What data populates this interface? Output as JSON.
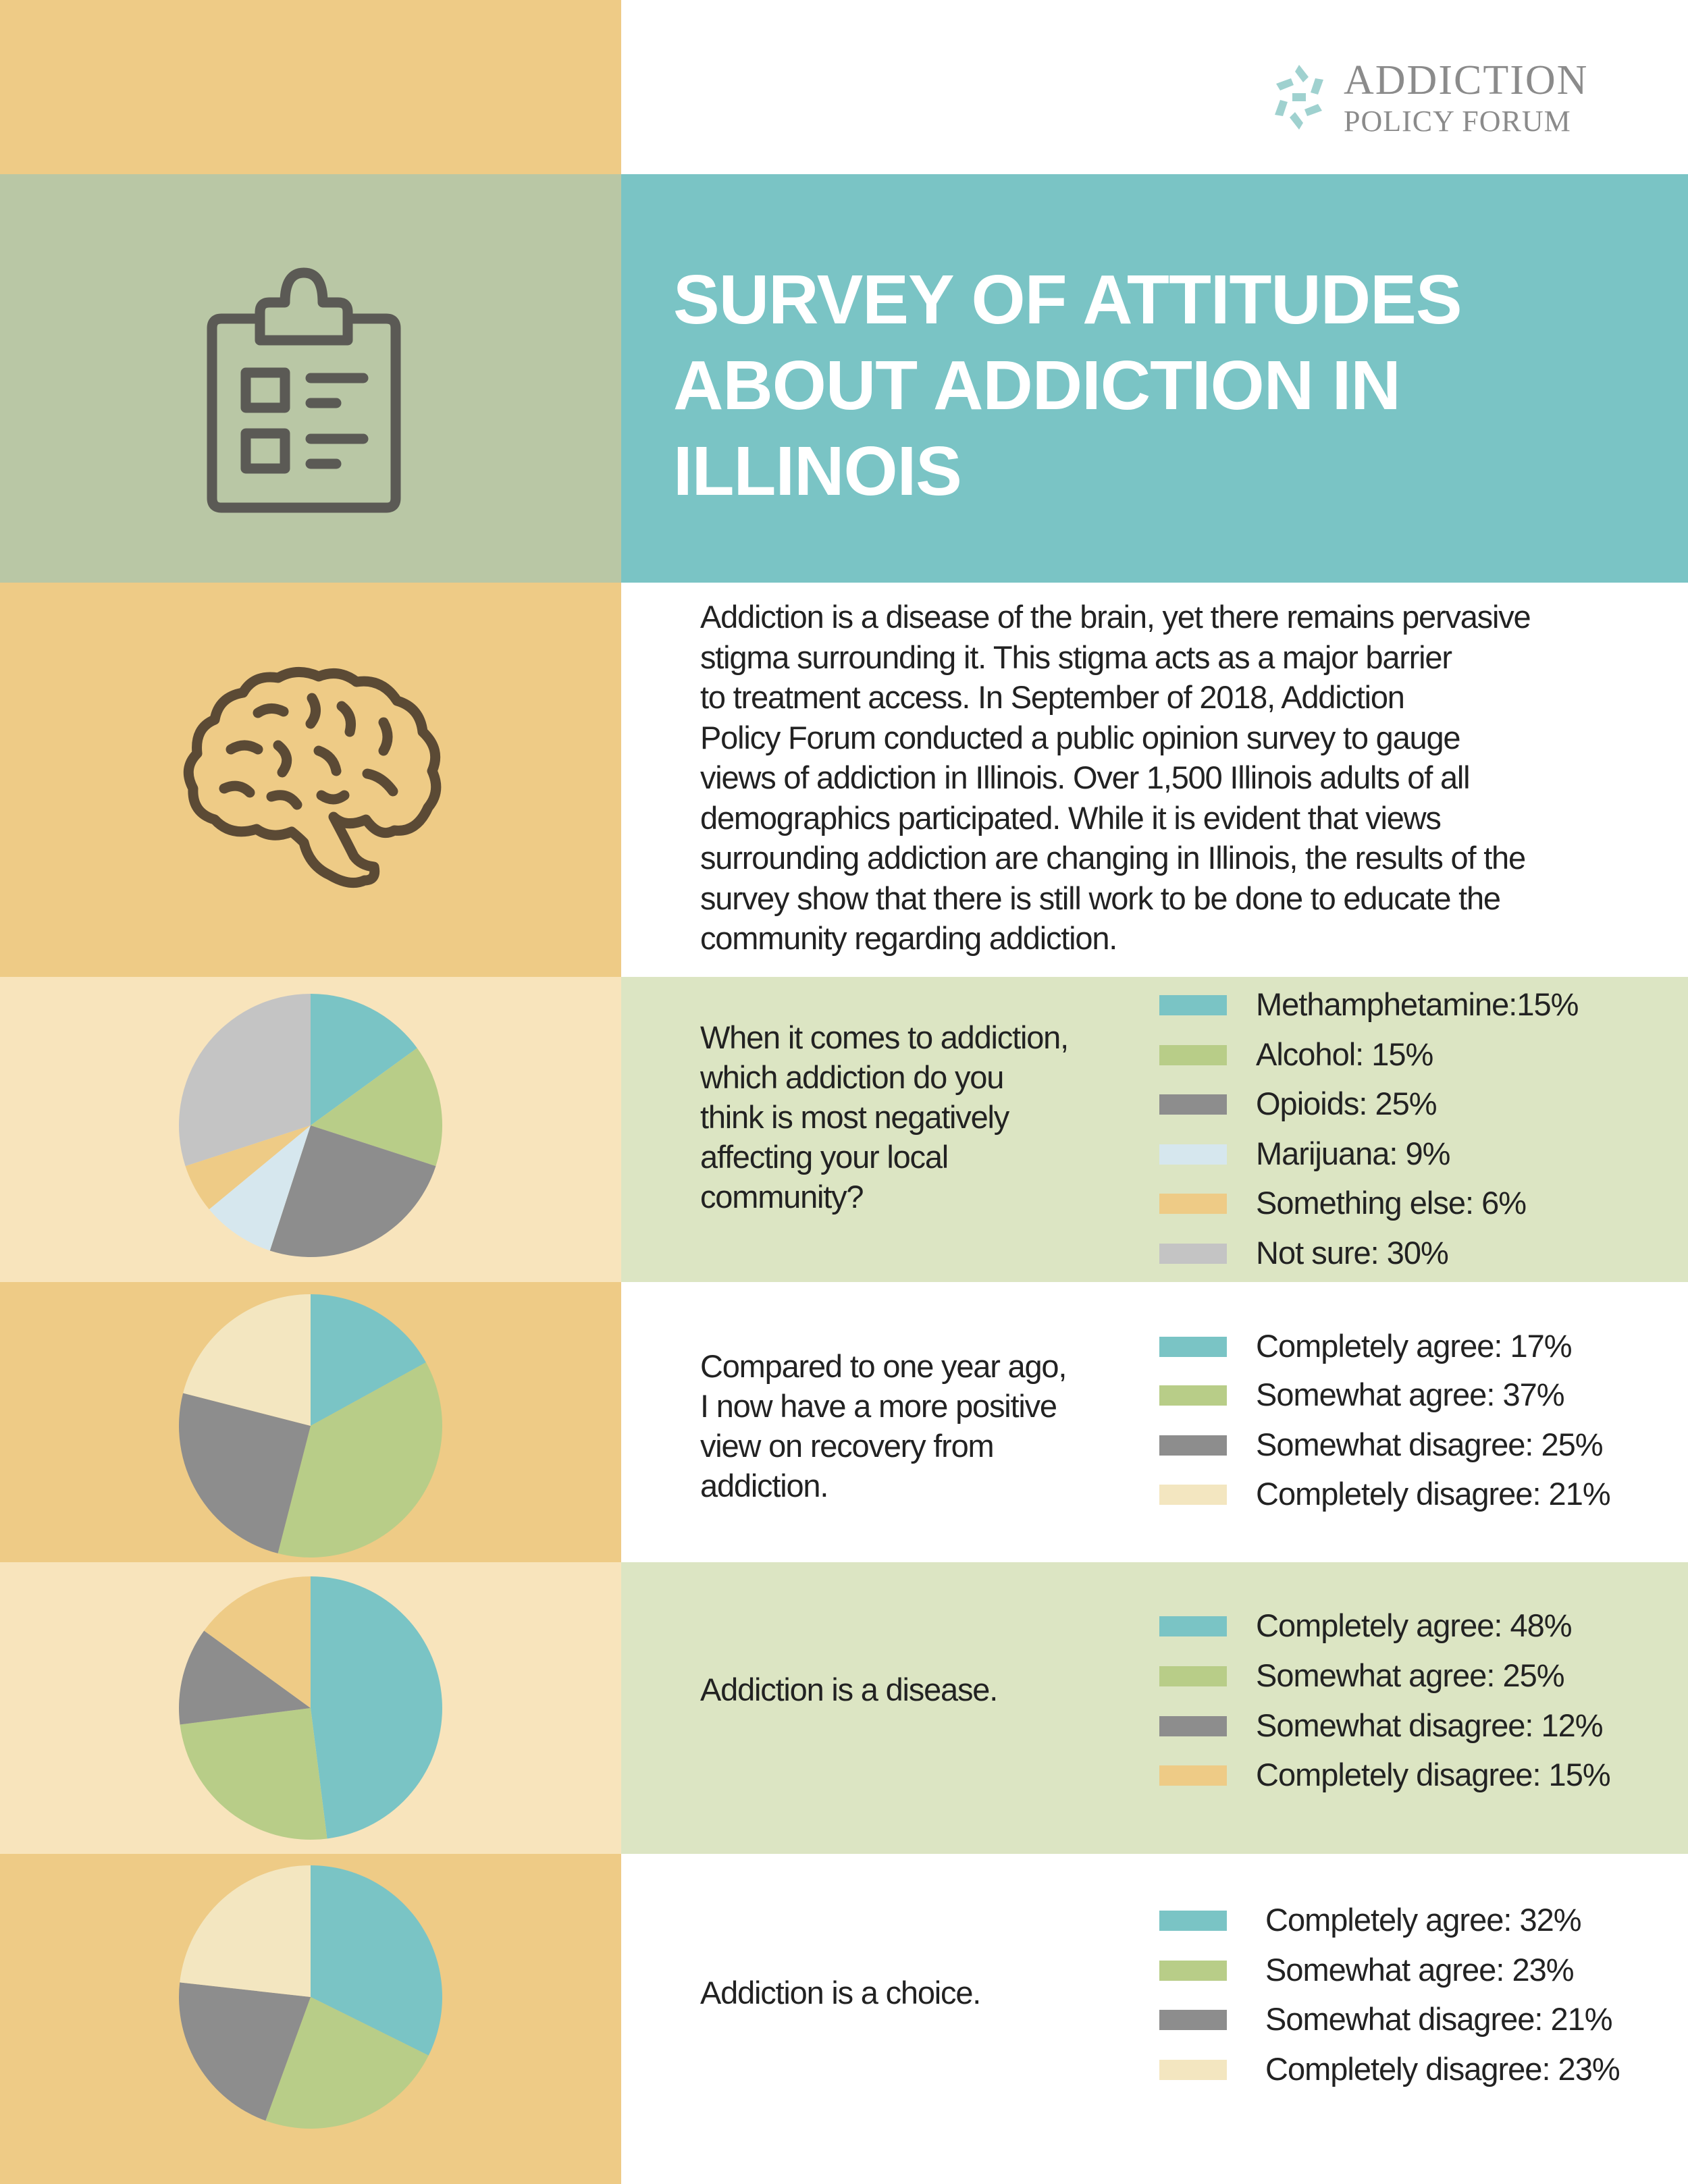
{
  "colors": {
    "gold": "#eecb86",
    "sage": "#b9c7a5",
    "teal": "#7ac4c5",
    "light_green_panel": "#dce5c3",
    "light_cream": "#f8e4bc",
    "icon_gray": "#5b5a55",
    "brain_brown": "#5b4a35"
  },
  "logo": {
    "icon": "addiction-policy-forum-logo-icon",
    "line1": "ADDICTION",
    "line2": "POLICY FORUM"
  },
  "header": {
    "title_line1": "SURVEY OF ATTITUDES",
    "title_line2": "ABOUT ADDICTION IN",
    "title_line3": "ILLINOIS",
    "icon": "clipboard-icon"
  },
  "intro": {
    "icon": "brain-icon",
    "lines": [
      "Addiction is a disease of the brain, yet there remains pervasive",
      "stigma surrounding it. This stigma acts as a major barrier",
      "to treatment access. In September of 2018, Addiction",
      "Policy Forum conducted a public opinion survey to gauge",
      "views of addiction in Illinois. Over 1,500 Illinois adults of all",
      "demographics participated. While it is evident that views",
      "surrounding addiction are changing in Illinois, the results of the",
      "survey show that there is still work to be done to educate the",
      "community regarding addiction."
    ]
  },
  "chart_data": [
    {
      "type": "pie",
      "question_lines": [
        "When it comes to addiction,",
        "which addiction do you",
        "think is most negatively",
        "affecting your local",
        "community?"
      ],
      "slices": [
        {
          "label": "Methamphetamine:15%",
          "value": 15,
          "color": "#7ac4c5"
        },
        {
          "label": "Alcohol: 15%",
          "value": 15,
          "color": "#b8cd88"
        },
        {
          "label": "Opioids: 25%",
          "value": 25,
          "color": "#8d8d8d"
        },
        {
          "label": "Marijuana: 9%",
          "value": 9,
          "color": "#d6e7ee"
        },
        {
          "label": "Something else: 6%",
          "value": 6,
          "color": "#eecb86"
        },
        {
          "label": "Not sure: 30%",
          "value": 30,
          "color": "#c4c4c4"
        }
      ]
    },
    {
      "type": "pie",
      "question_lines": [
        "Compared to one year ago,",
        "I now have a more positive",
        "view on recovery from",
        "addiction."
      ],
      "slices": [
        {
          "label": "Completely agree: 17%",
          "value": 17,
          "color": "#7ac4c5"
        },
        {
          "label": "Somewhat agree: 37%",
          "value": 37,
          "color": "#b8cd88"
        },
        {
          "label": "Somewhat disagree: 25%",
          "value": 25,
          "color": "#8d8d8d"
        },
        {
          "label": "Completely disagree: 21%",
          "value": 21,
          "color": "#f3e6c0"
        }
      ]
    },
    {
      "type": "pie",
      "question_lines": [
        "Addiction is a disease."
      ],
      "slices": [
        {
          "label": "Completely agree: 48%",
          "value": 48,
          "color": "#7ac4c5"
        },
        {
          "label": "Somewhat agree: 25%",
          "value": 25,
          "color": "#b8cd88"
        },
        {
          "label": "Somewhat disagree: 12%",
          "value": 12,
          "color": "#8d8d8d"
        },
        {
          "label": "Completely disagree: 15%",
          "value": 15,
          "color": "#eecb86"
        }
      ]
    },
    {
      "type": "pie",
      "question_lines": [
        "Addiction is a choice."
      ],
      "slices": [
        {
          "label": "Completely agree: 32%",
          "value": 32,
          "color": "#7ac4c5"
        },
        {
          "label": "Somewhat agree: 23%",
          "value": 23,
          "color": "#b8cd88"
        },
        {
          "label": "Somewhat disagree: 21%",
          "value": 21,
          "color": "#8d8d8d"
        },
        {
          "label": "Completely disagree: 23%",
          "value": 23,
          "color": "#f3e6c0"
        }
      ]
    }
  ]
}
